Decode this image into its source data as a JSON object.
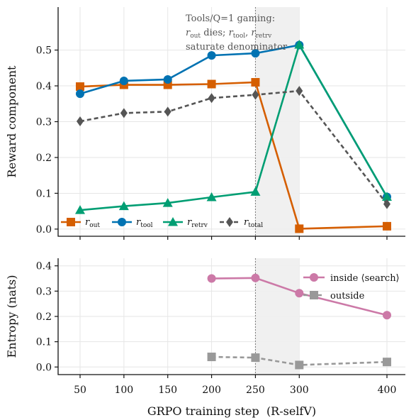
{
  "chart_data": [
    {
      "type": "line",
      "ylabel": "Reward component",
      "xlabel": "",
      "ylim": [
        -0.02,
        0.62
      ],
      "yticks": [
        0.0,
        0.1,
        0.2,
        0.3,
        0.4,
        0.5
      ],
      "ytick_labels": [
        "0.0",
        "0.1",
        "0.2",
        "0.3",
        "0.4",
        "0.5"
      ],
      "grid": true,
      "legend_position": "bottom-left",
      "shaded_region": [
        250,
        300
      ],
      "vline_x": 250,
      "annotation": {
        "line1": "Tools/Q=1 gaming:",
        "line2_a": "r",
        "line2_a_sub": "out",
        "line2_b": " dies; ",
        "line2_c": "r",
        "line2_c_sub": "tool",
        "line2_d": ", ",
        "line2_e": "r",
        "line2_e_sub": "retrv",
        "line3": "saturate denominator"
      },
      "series": [
        {
          "key": "r_out",
          "label": "r",
          "sub": "out",
          "color": "#D55E00",
          "marker": "square",
          "dash": "",
          "x": [
            50,
            100,
            150,
            200,
            250,
            300,
            400
          ],
          "y": [
            0.398,
            0.403,
            0.403,
            0.405,
            0.41,
            0.001,
            0.008
          ]
        },
        {
          "key": "r_tool",
          "label": "r",
          "sub": "tool",
          "color": "#0072B2",
          "marker": "circle",
          "dash": "",
          "x": [
            50,
            100,
            150,
            200,
            250,
            300,
            400
          ],
          "y": [
            0.378,
            0.414,
            0.418,
            0.485,
            0.491,
            0.514,
            0.09
          ]
        },
        {
          "key": "r_retrv",
          "label": "r",
          "sub": "retrv",
          "color": "#009E73",
          "marker": "triangle",
          "dash": "",
          "x": [
            50,
            100,
            150,
            200,
            250,
            300,
            400
          ],
          "y": [
            0.053,
            0.064,
            0.073,
            0.089,
            0.104,
            0.515,
            0.09
          ]
        },
        {
          "key": "r_total",
          "label": "r",
          "sub": "total",
          "color": "#555555",
          "marker": "diamond",
          "dash": "6,4",
          "x": [
            50,
            100,
            150,
            200,
            250,
            300,
            400
          ],
          "y": [
            0.301,
            0.324,
            0.328,
            0.366,
            0.375,
            0.386,
            0.07
          ]
        }
      ]
    },
    {
      "type": "line",
      "ylabel": "Entropy (nats)",
      "xlabel": "GRPO training step  (R-selfV)",
      "ylim": [
        -0.03,
        0.43
      ],
      "yticks": [
        0.0,
        0.1,
        0.2,
        0.3,
        0.4
      ],
      "ytick_labels": [
        "0.0",
        "0.1",
        "0.2",
        "0.3",
        "0.4"
      ],
      "xticks": [
        50,
        100,
        150,
        200,
        250,
        300,
        400
      ],
      "xtick_labels": [
        "50",
        "100",
        "150",
        "200",
        "250",
        "300",
        "400"
      ],
      "grid": true,
      "legend_position": "top-right",
      "shaded_region": [
        250,
        300
      ],
      "vline_x": 250,
      "series": [
        {
          "key": "inside",
          "label": "inside ⟨search⟩",
          "color": "#CC79A7",
          "marker": "circle",
          "dash": "",
          "x": [
            200,
            250,
            300,
            400
          ],
          "y": [
            0.35,
            0.352,
            0.292,
            0.205
          ]
        },
        {
          "key": "outside",
          "label": "outside",
          "color": "#999999",
          "marker": "square",
          "dash": "6,4",
          "x": [
            200,
            250,
            300,
            400
          ],
          "y": [
            0.04,
            0.037,
            0.008,
            0.02
          ]
        }
      ]
    }
  ]
}
